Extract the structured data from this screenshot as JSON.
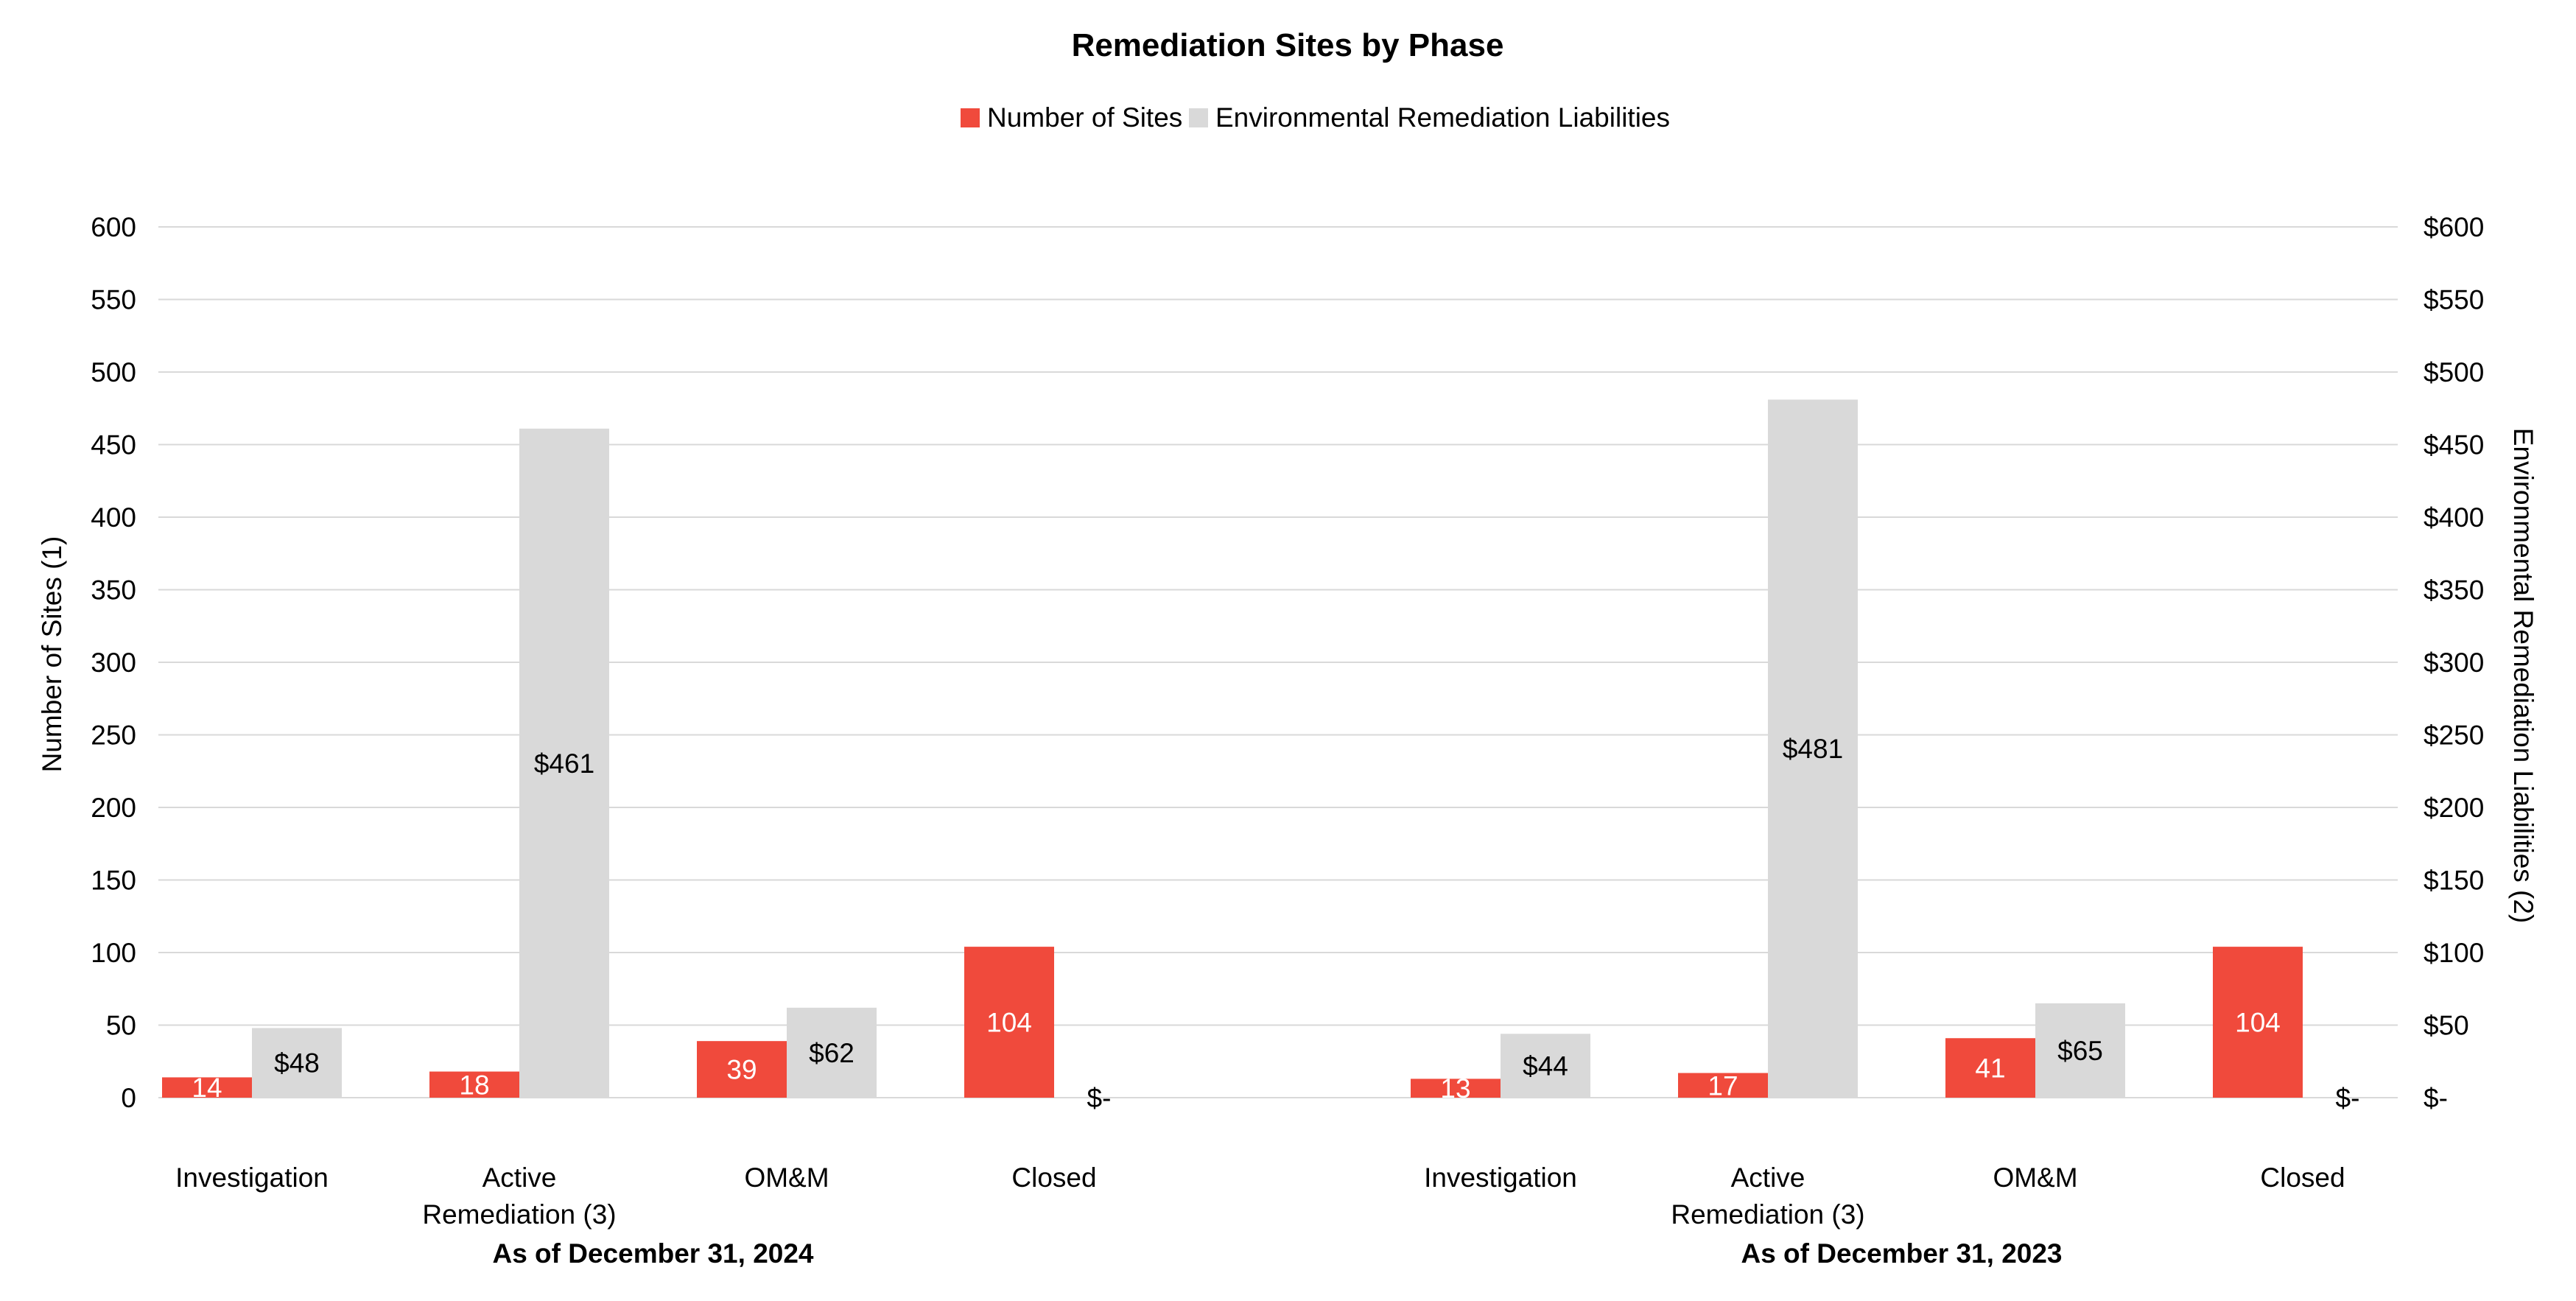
{
  "chart_data": {
    "type": "bar",
    "title": "Remediation Sites by Phase",
    "ylabel_left": "Number of Sites (1)",
    "ylabel_right": "Environmental Remediation Liabilities (2)",
    "ylim": [
      0,
      600
    ],
    "ylim_right": [
      0,
      600
    ],
    "y_ticks_left": [
      "0",
      "50",
      "100",
      "150",
      "200",
      "250",
      "300",
      "350",
      "400",
      "450",
      "500",
      "550",
      "600"
    ],
    "y_ticks_right": [
      "$-",
      "$50",
      "$100",
      "$150",
      "$200",
      "$250",
      "$300",
      "$350",
      "$400",
      "$450",
      "$500",
      "$550",
      "$600"
    ],
    "grid": true,
    "legend_position": "top-center",
    "groups": [
      {
        "label": "As of December 31, 2024",
        "categories": [
          {
            "lines": [
              "Investigation"
            ]
          },
          {
            "lines": [
              "Active",
              "Remediation (3)"
            ]
          },
          {
            "lines": [
              "OM&M"
            ]
          },
          {
            "lines": [
              "Closed"
            ]
          }
        ]
      },
      {
        "label": "As of December 31, 2023",
        "categories": [
          {
            "lines": [
              "Investigation"
            ]
          },
          {
            "lines": [
              "Active",
              "Remediation (3)"
            ]
          },
          {
            "lines": [
              "OM&M"
            ]
          },
          {
            "lines": [
              "Closed"
            ]
          }
        ]
      }
    ],
    "series": [
      {
        "name": "Number of Sites",
        "axis": "left",
        "color": "#f04a3c",
        "values": [
          14,
          18,
          39,
          104,
          13,
          17,
          41,
          104
        ],
        "labels": [
          "14",
          "18",
          "39",
          "104",
          "13",
          "17",
          "41",
          "104"
        ]
      },
      {
        "name": "Environmental Remediation Liabilities",
        "axis": "right",
        "color": "#d9d9d9",
        "values": [
          48,
          461,
          62,
          0,
          44,
          481,
          65,
          0
        ],
        "labels": [
          "$48",
          "$461",
          "$62",
          "$-",
          "$44",
          "$481",
          "$65",
          "$-"
        ]
      }
    ]
  }
}
